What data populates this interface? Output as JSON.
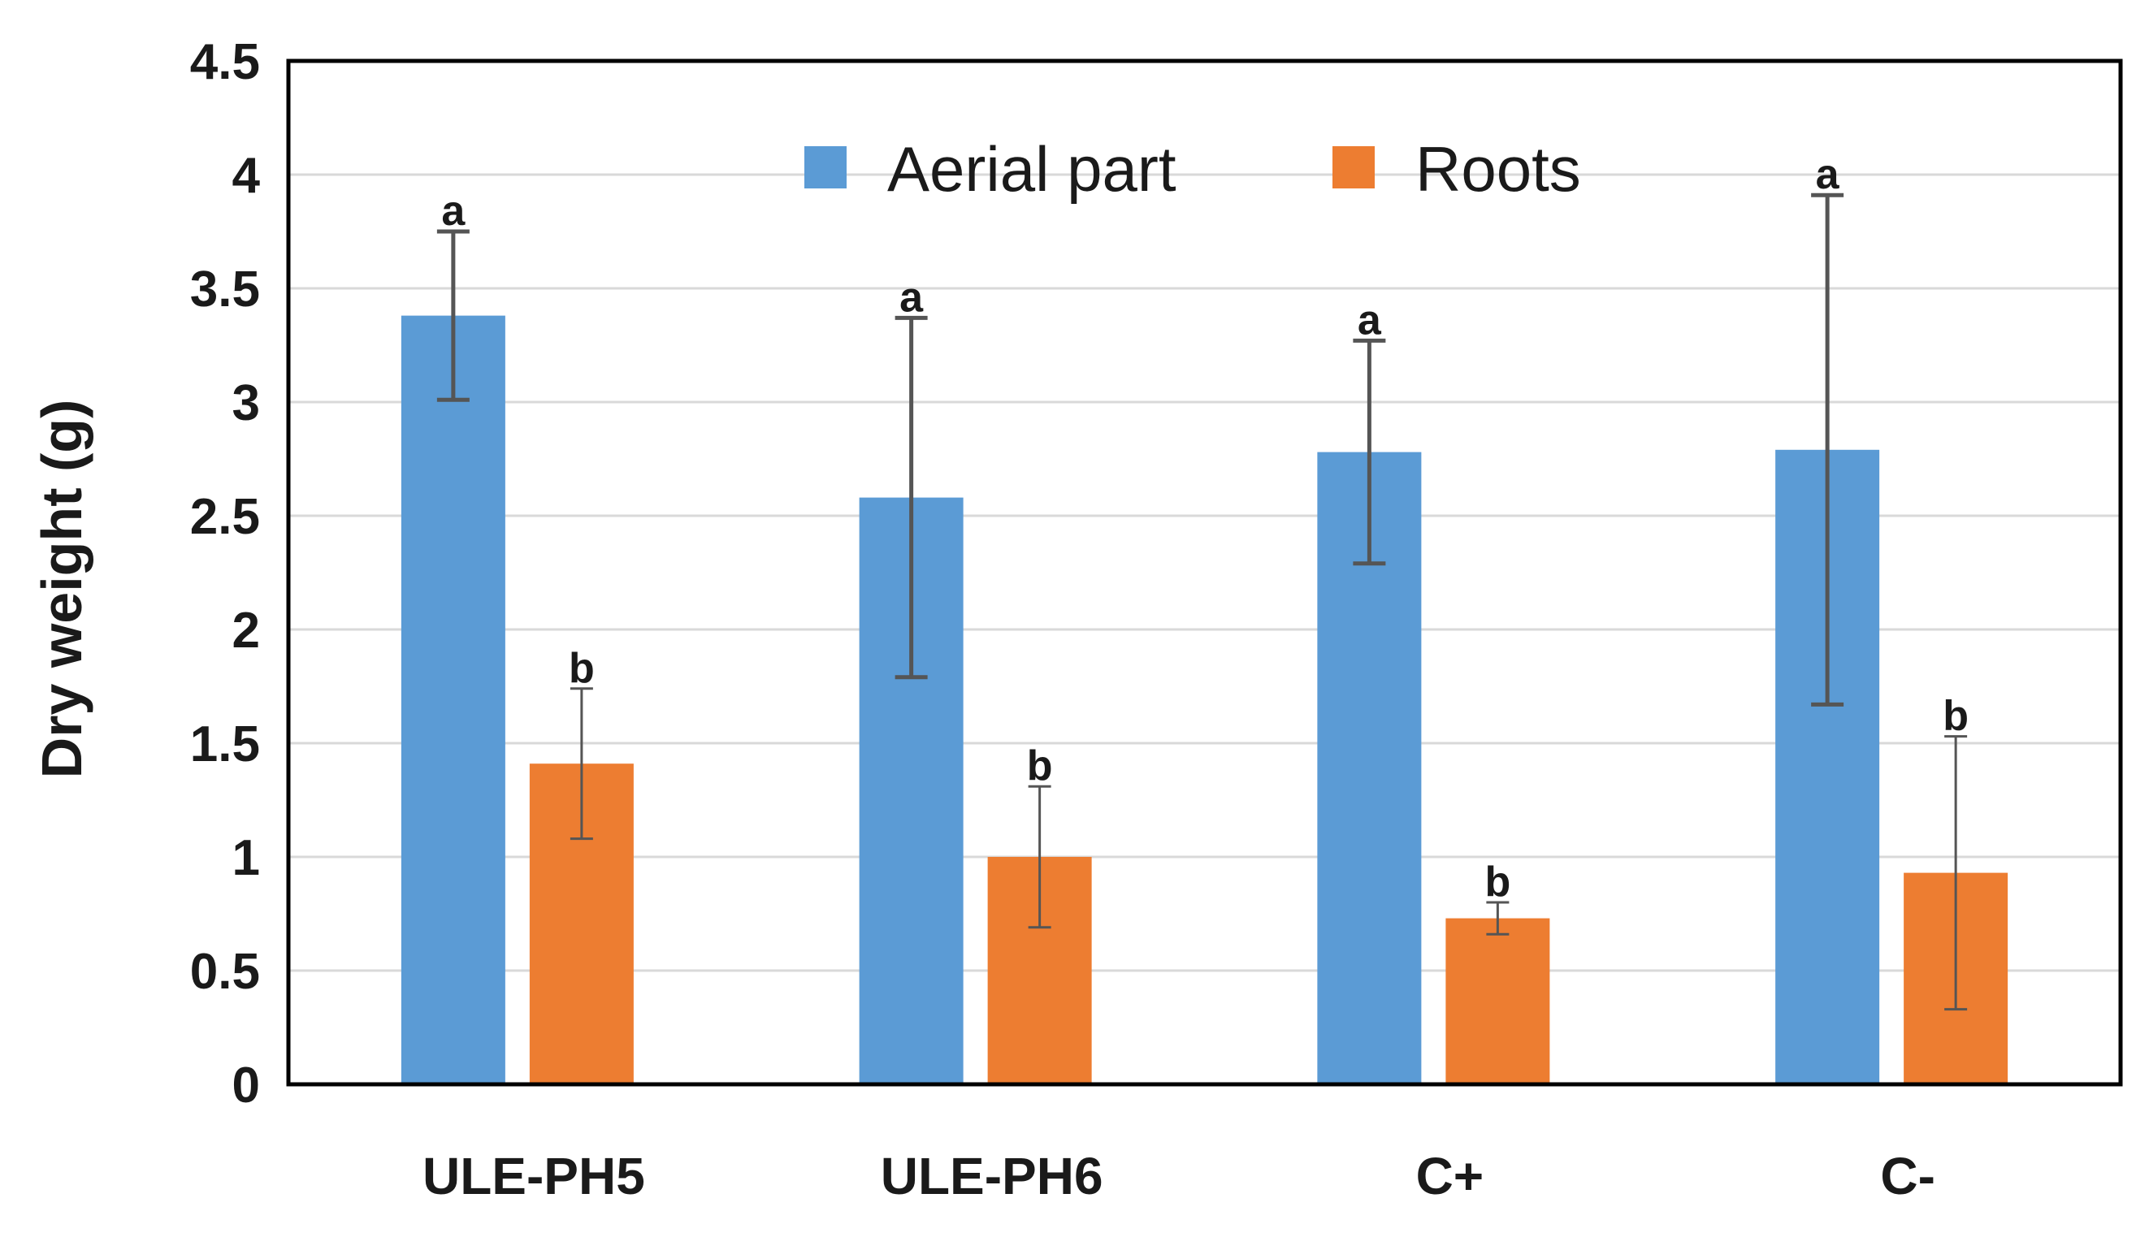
{
  "chart_data": {
    "type": "bar",
    "title": "",
    "xlabel": "",
    "ylabel": "Dry weight (g)",
    "ylim": [
      0,
      4.5
    ],
    "yticks": [
      0,
      0.5,
      1,
      1.5,
      2,
      2.5,
      3,
      3.5,
      4,
      4.5
    ],
    "ytick_labels": [
      "0",
      "0.5",
      "1",
      "1.5",
      "2",
      "2.5",
      "3",
      "3.5",
      "4",
      "4.5"
    ],
    "grid": true,
    "legend_position": "top-center",
    "categories": [
      "ULE-PH5",
      "ULE-PH6",
      "C+",
      "C-"
    ],
    "series": [
      {
        "name": "Aerial part",
        "color": "#5b9bd5",
        "values": [
          3.38,
          2.58,
          2.78,
          2.79
        ],
        "errors": [
          0.37,
          0.79,
          0.49,
          1.12
        ],
        "significance": [
          "a",
          "a",
          "a",
          "a"
        ]
      },
      {
        "name": "Roots",
        "color": "#ed7d31",
        "values": [
          1.41,
          1.0,
          0.73,
          0.93
        ],
        "errors": [
          0.33,
          0.31,
          0.07,
          0.6
        ],
        "significance": [
          "b",
          "b",
          "b",
          "b"
        ]
      }
    ]
  }
}
